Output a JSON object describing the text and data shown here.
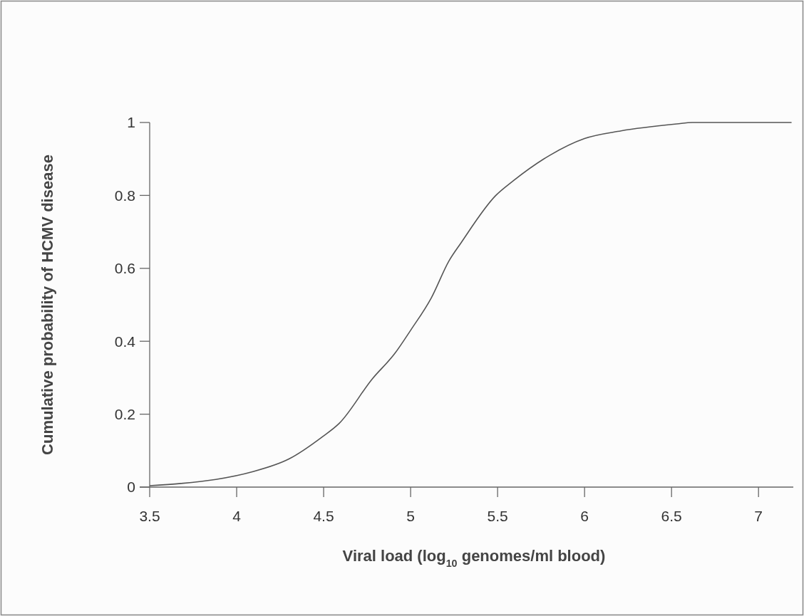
{
  "chart_data": {
    "type": "line",
    "xlabel": "Viral load (log$_{10}$ genomes/ml blood)",
    "ylabel": "Cumulative probability of HCMV disease",
    "xlim": [
      3.5,
      7.2
    ],
    "xticks": [
      3.5,
      4,
      4.5,
      5,
      5.5,
      6,
      6.5,
      7
    ],
    "ylim": [
      0,
      1
    ],
    "yticks": [
      0,
      0.2,
      0.4,
      0.6,
      0.8,
      1
    ],
    "grid": false,
    "marker": "none",
    "line_style": "solid",
    "series": [
      {
        "color": "#555555",
        "x": [
          3.5,
          3.68,
          3.88,
          4.09,
          4.3,
          4.49,
          4.59,
          4.78,
          4.91,
          5.0,
          5.12,
          5.22,
          5.29,
          5.49,
          5.59,
          5.8,
          6.0,
          6.21,
          6.53,
          6.62,
          6.9,
          6.99,
          7.19
        ],
        "values": [
          0.004,
          0.01,
          0.021,
          0.042,
          0.077,
          0.137,
          0.175,
          0.297,
          0.367,
          0.43,
          0.52,
          0.62,
          0.67,
          0.8,
          0.84,
          0.91,
          0.956,
          0.977,
          0.996,
          1.0,
          1.0,
          1.0,
          1.0
        ]
      }
    ]
  }
}
